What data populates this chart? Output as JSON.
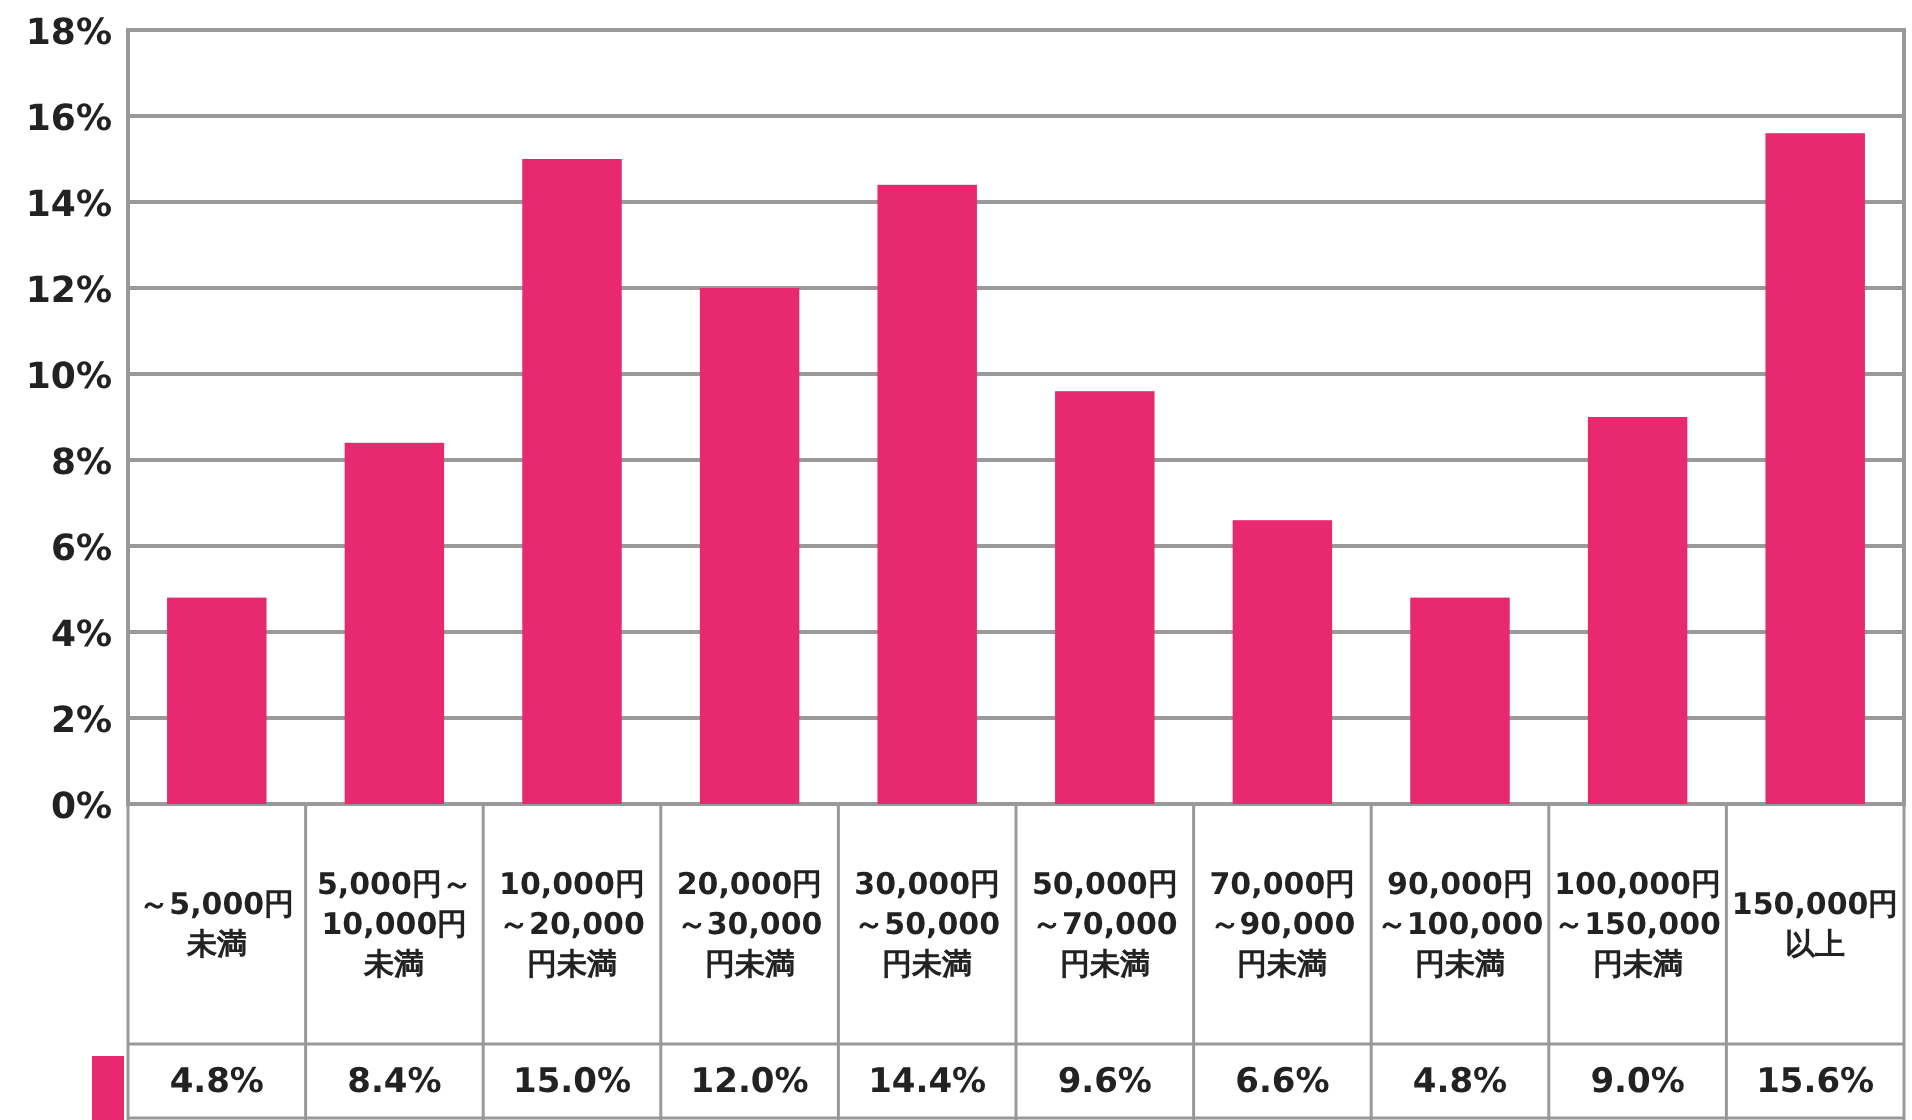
{
  "chart_data": {
    "type": "bar",
    "categories": [
      "～5,000円未満",
      "5,000円～10,000円未満",
      "10,000円～20,000円未満",
      "20,000円～30,000円未満",
      "30,000円～50,000円未満",
      "50,000円～70,000円未満",
      "70,000円～90,000円未満",
      "90,000円～100,000円未満",
      "100,000円～150,000円未満",
      "150,000円以上"
    ],
    "values": [
      4.8,
      8.4,
      15.0,
      12.0,
      14.4,
      9.6,
      6.6,
      4.8,
      9.0,
      15.6
    ],
    "value_labels": [
      "4.8%",
      "8.4%",
      "15.0%",
      "12.0%",
      "14.4%",
      "9.6%",
      "6.6%",
      "4.8%",
      "9.0%",
      "15.6%"
    ],
    "color": "#e8296f",
    "ylim": [
      0,
      18
    ],
    "yticks": [
      {
        "value": 0,
        "label": "0%"
      },
      {
        "value": 2,
        "label": "2%"
      },
      {
        "value": 4,
        "label": "4%"
      },
      {
        "value": 6,
        "label": "6%"
      },
      {
        "value": 8,
        "label": "8%"
      },
      {
        "value": 10,
        "label": "10%"
      },
      {
        "value": 12,
        "label": "12%"
      },
      {
        "value": 14,
        "label": "14%"
      },
      {
        "value": 16,
        "label": "16%"
      },
      {
        "value": 18,
        "label": "18%"
      }
    ],
    "grid": "y"
  }
}
